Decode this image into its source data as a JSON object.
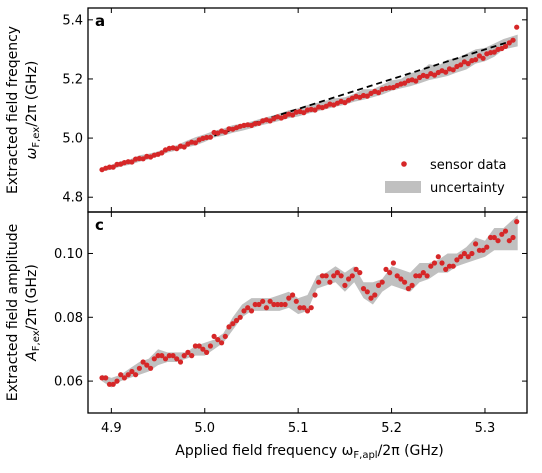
{
  "chart_data": [
    {
      "type": "scatter",
      "panel_label": "a",
      "ylabel_line1": "Extracted field freqency",
      "ylabel_line2_base": "ω",
      "ylabel_line2_sub": "F,ex",
      "ylabel_line2_tail": "/2π (GHz)",
      "xlim": [
        4.875,
        5.345
      ],
      "ylim": [
        4.75,
        5.44
      ],
      "yticks": [
        4.8,
        5.0,
        5.2,
        5.4
      ],
      "ytick_labels": [
        "4.8",
        "5.0",
        "5.2",
        "5.4"
      ],
      "series": [
        {
          "name": "sensor data",
          "kind": "points",
          "color": "#d62728",
          "x": [
            4.89,
            4.894,
            4.898,
            4.902,
            4.906,
            4.91,
            4.914,
            4.918,
            4.922,
            4.926,
            4.93,
            4.934,
            4.938,
            4.942,
            4.946,
            4.95,
            4.954,
            4.958,
            4.962,
            4.966,
            4.97,
            4.974,
            4.978,
            4.982,
            4.986,
            4.99,
            4.994,
            4.998,
            5.002,
            5.006,
            5.01,
            5.014,
            5.018,
            5.022,
            5.026,
            5.03,
            5.034,
            5.038,
            5.042,
            5.046,
            5.05,
            5.054,
            5.058,
            5.062,
            5.066,
            5.07,
            5.074,
            5.078,
            5.082,
            5.086,
            5.09,
            5.094,
            5.098,
            5.102,
            5.106,
            5.11,
            5.114,
            5.118,
            5.122,
            5.126,
            5.13,
            5.134,
            5.138,
            5.142,
            5.146,
            5.15,
            5.154,
            5.158,
            5.162,
            5.166,
            5.17,
            5.174,
            5.178,
            5.182,
            5.186,
            5.19,
            5.194,
            5.198,
            5.202,
            5.206,
            5.21,
            5.214,
            5.218,
            5.222,
            5.226,
            5.23,
            5.234,
            5.238,
            5.242,
            5.246,
            5.25,
            5.254,
            5.258,
            5.262,
            5.266,
            5.27,
            5.274,
            5.278,
            5.282,
            5.286,
            5.29,
            5.294,
            5.298,
            5.302,
            5.306,
            5.31,
            5.314,
            5.318,
            5.322,
            5.326,
            5.33,
            5.334
          ],
          "y": [
            4.893,
            4.898,
            4.902,
            4.902,
            4.911,
            4.912,
            4.917,
            4.92,
            4.919,
            4.929,
            4.931,
            4.93,
            4.938,
            4.936,
            4.942,
            4.945,
            4.95,
            4.96,
            4.965,
            4.967,
            4.964,
            4.973,
            4.97,
            4.98,
            4.986,
            4.984,
            4.994,
            4.999,
            5.002,
            5.003,
            5.019,
            5.017,
            5.024,
            5.02,
            5.031,
            5.03,
            5.035,
            5.04,
            5.043,
            5.045,
            5.043,
            5.049,
            5.05,
            5.058,
            5.062,
            5.058,
            5.066,
            5.072,
            5.068,
            5.073,
            5.081,
            5.078,
            5.088,
            5.09,
            5.086,
            5.095,
            5.097,
            5.095,
            5.105,
            5.103,
            5.108,
            5.115,
            5.112,
            5.118,
            5.124,
            5.12,
            5.128,
            5.135,
            5.141,
            5.138,
            5.144,
            5.142,
            5.151,
            5.158,
            5.154,
            5.165,
            5.168,
            5.17,
            5.171,
            5.178,
            5.183,
            5.186,
            5.194,
            5.197,
            5.193,
            5.205,
            5.212,
            5.209,
            5.218,
            5.213,
            5.222,
            5.228,
            5.223,
            5.234,
            5.231,
            5.242,
            5.248,
            5.258,
            5.252,
            5.262,
            5.265,
            5.278,
            5.27,
            5.285,
            5.289,
            5.291,
            5.3,
            5.303,
            5.31,
            5.322,
            5.331,
            5.375
          ]
        },
        {
          "name": "uncertainty",
          "kind": "band",
          "color": "#c0c0c0",
          "x": [
            4.89,
            4.9,
            4.91,
            4.92,
            4.93,
            4.94,
            4.95,
            4.96,
            4.97,
            4.98,
            4.99,
            5.0,
            5.01,
            5.02,
            5.03,
            5.04,
            5.05,
            5.06,
            5.07,
            5.08,
            5.09,
            5.1,
            5.11,
            5.12,
            5.13,
            5.14,
            5.15,
            5.16,
            5.17,
            5.18,
            5.19,
            5.2,
            5.21,
            5.22,
            5.23,
            5.24,
            5.25,
            5.26,
            5.27,
            5.28,
            5.29,
            5.3,
            5.31,
            5.32,
            5.335
          ],
          "lower": [
            4.888,
            4.893,
            4.904,
            4.91,
            4.92,
            4.928,
            4.938,
            4.951,
            4.958,
            4.968,
            4.975,
            4.987,
            5.002,
            5.008,
            5.018,
            5.025,
            5.033,
            5.043,
            5.05,
            5.058,
            5.067,
            5.073,
            5.082,
            5.09,
            5.098,
            5.106,
            5.113,
            5.123,
            5.13,
            5.138,
            5.147,
            5.16,
            5.168,
            5.175,
            5.185,
            5.196,
            5.203,
            5.21,
            5.222,
            5.232,
            5.252,
            5.26,
            5.275,
            5.3,
            5.31
          ],
          "upper": [
            4.898,
            4.91,
            4.922,
            4.928,
            4.942,
            4.947,
            4.955,
            4.968,
            4.976,
            4.99,
            5.003,
            5.013,
            5.025,
            5.032,
            5.044,
            5.049,
            5.056,
            5.066,
            5.074,
            5.083,
            5.094,
            5.101,
            5.112,
            5.119,
            5.127,
            5.135,
            5.138,
            5.15,
            5.165,
            5.165,
            5.18,
            5.195,
            5.2,
            5.22,
            5.225,
            5.25,
            5.245,
            5.265,
            5.27,
            5.285,
            5.3,
            5.305,
            5.32,
            5.335,
            5.35
          ]
        },
        {
          "name": "linear fit",
          "kind": "dashed-line",
          "color": "#000000",
          "x": [
            5.0,
            5.335
          ],
          "y": [
            4.998,
            5.335
          ]
        }
      ],
      "legend": {
        "placement": "lower-right",
        "entries": [
          "sensor data",
          "uncertainty"
        ]
      }
    },
    {
      "type": "scatter",
      "panel_label": "c",
      "ylabel_line1": "Extracted field amplitude",
      "ylabel_line2_base": "A",
      "ylabel_line2_sub": "F,ex",
      "ylabel_line2_tail": "/2π (GHz)",
      "xlabel_base": "Applied field frequency ω",
      "xlabel_sub": "F,apl",
      "xlabel_tail": "/2π (GHz)",
      "xlim": [
        4.875,
        5.345
      ],
      "ylim": [
        0.05,
        0.113
      ],
      "xticks": [
        4.9,
        5.0,
        5.1,
        5.2,
        5.3
      ],
      "xtick_labels": [
        "4.9",
        "5.0",
        "5.1",
        "5.2",
        "5.3"
      ],
      "yticks": [
        0.06,
        0.08,
        0.1
      ],
      "ytick_labels": [
        "0.06",
        "0.08",
        "0.10"
      ],
      "series": [
        {
          "name": "sensor data",
          "kind": "points",
          "color": "#d62728",
          "x": [
            4.89,
            4.894,
            4.898,
            4.902,
            4.906,
            4.91,
            4.914,
            4.918,
            4.922,
            4.926,
            4.93,
            4.934,
            4.938,
            4.942,
            4.946,
            4.95,
            4.954,
            4.958,
            4.962,
            4.966,
            4.97,
            4.974,
            4.978,
            4.982,
            4.986,
            4.99,
            4.994,
            4.998,
            5.002,
            5.006,
            5.01,
            5.014,
            5.018,
            5.022,
            5.026,
            5.03,
            5.034,
            5.038,
            5.042,
            5.046,
            5.05,
            5.054,
            5.058,
            5.062,
            5.066,
            5.07,
            5.074,
            5.078,
            5.082,
            5.086,
            5.09,
            5.094,
            5.098,
            5.102,
            5.106,
            5.11,
            5.114,
            5.118,
            5.122,
            5.126,
            5.13,
            5.134,
            5.138,
            5.142,
            5.146,
            5.15,
            5.154,
            5.158,
            5.162,
            5.166,
            5.17,
            5.174,
            5.178,
            5.182,
            5.186,
            5.19,
            5.194,
            5.198,
            5.202,
            5.206,
            5.21,
            5.214,
            5.218,
            5.222,
            5.226,
            5.23,
            5.234,
            5.238,
            5.242,
            5.246,
            5.25,
            5.254,
            5.258,
            5.262,
            5.266,
            5.27,
            5.274,
            5.278,
            5.282,
            5.286,
            5.29,
            5.294,
            5.298,
            5.302,
            5.306,
            5.31,
            5.314,
            5.318,
            5.322,
            5.326,
            5.33,
            5.334
          ],
          "y": [
            0.061,
            0.061,
            0.059,
            0.059,
            0.06,
            0.062,
            0.061,
            0.062,
            0.063,
            0.062,
            0.064,
            0.066,
            0.065,
            0.064,
            0.067,
            0.068,
            0.068,
            0.067,
            0.068,
            0.068,
            0.067,
            0.066,
            0.068,
            0.069,
            0.068,
            0.071,
            0.071,
            0.07,
            0.069,
            0.071,
            0.074,
            0.073,
            0.072,
            0.074,
            0.077,
            0.078,
            0.079,
            0.08,
            0.082,
            0.083,
            0.082,
            0.084,
            0.084,
            0.085,
            0.083,
            0.085,
            0.084,
            0.084,
            0.084,
            0.084,
            0.086,
            0.087,
            0.085,
            0.083,
            0.083,
            0.082,
            0.083,
            0.087,
            0.091,
            0.093,
            0.093,
            0.091,
            0.093,
            0.094,
            0.093,
            0.09,
            0.092,
            0.093,
            0.095,
            0.094,
            0.089,
            0.088,
            0.086,
            0.087,
            0.09,
            0.091,
            0.095,
            0.094,
            0.097,
            0.093,
            0.092,
            0.091,
            0.089,
            0.09,
            0.093,
            0.093,
            0.094,
            0.093,
            0.096,
            0.097,
            0.099,
            0.097,
            0.095,
            0.096,
            0.096,
            0.098,
            0.099,
            0.1,
            0.099,
            0.1,
            0.103,
            0.101,
            0.101,
            0.102,
            0.105,
            0.105,
            0.104,
            0.106,
            0.107,
            0.104,
            0.105,
            0.11
          ]
        },
        {
          "name": "uncertainty",
          "kind": "band",
          "color": "#c0c0c0",
          "x": [
            4.89,
            4.9,
            4.91,
            4.92,
            4.93,
            4.94,
            4.95,
            4.96,
            4.97,
            4.98,
            4.99,
            5.0,
            5.01,
            5.02,
            5.03,
            5.04,
            5.05,
            5.06,
            5.07,
            5.08,
            5.09,
            5.1,
            5.11,
            5.12,
            5.13,
            5.14,
            5.15,
            5.16,
            5.17,
            5.18,
            5.19,
            5.2,
            5.21,
            5.22,
            5.23,
            5.24,
            5.25,
            5.26,
            5.27,
            5.28,
            5.29,
            5.3,
            5.31,
            5.32,
            5.335
          ],
          "lower": [
            0.06,
            0.058,
            0.06,
            0.061,
            0.062,
            0.063,
            0.065,
            0.066,
            0.066,
            0.067,
            0.068,
            0.068,
            0.07,
            0.072,
            0.076,
            0.08,
            0.082,
            0.082,
            0.082,
            0.082,
            0.083,
            0.081,
            0.082,
            0.089,
            0.09,
            0.091,
            0.088,
            0.091,
            0.086,
            0.084,
            0.088,
            0.09,
            0.089,
            0.088,
            0.091,
            0.092,
            0.094,
            0.094,
            0.096,
            0.097,
            0.098,
            0.099,
            0.101,
            0.101,
            0.101
          ],
          "upper": [
            0.062,
            0.061,
            0.062,
            0.064,
            0.066,
            0.067,
            0.07,
            0.069,
            0.069,
            0.069,
            0.071,
            0.072,
            0.073,
            0.075,
            0.08,
            0.084,
            0.086,
            0.086,
            0.086,
            0.087,
            0.088,
            0.086,
            0.087,
            0.093,
            0.094,
            0.096,
            0.094,
            0.096,
            0.091,
            0.091,
            0.092,
            0.096,
            0.095,
            0.094,
            0.097,
            0.097,
            0.098,
            0.1,
            0.1,
            0.102,
            0.105,
            0.104,
            0.108,
            0.108,
            0.112
          ]
        }
      ],
      "legend": null
    }
  ]
}
